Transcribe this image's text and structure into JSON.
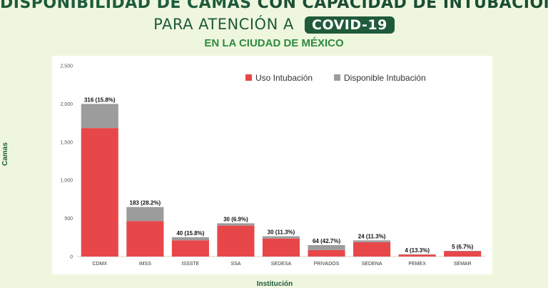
{
  "header": {
    "line1_a": "DISPONIBILIDAD DE CAMAS",
    "line1_b": "CON CAPACIDAD DE INTUBACIÓN",
    "line2_a": "PARA ATENCIÓN A",
    "line2_badge": "COVID-19",
    "line3": "EN LA CIUDAD DE MÉXICO"
  },
  "colors": {
    "uso": "#e8474a",
    "disponible": "#9c9c9c",
    "title": "#1f5a3b",
    "subtitle": "#2e8a3f"
  },
  "chart_data": {
    "type": "bar",
    "stacked": true,
    "title": "",
    "xlabel": "Institución",
    "ylabel": "Camas",
    "ylim": [
      0,
      2500
    ],
    "yticks": [
      0,
      500,
      1000,
      1500,
      2000,
      2500
    ],
    "ytick_labels": [
      "0",
      "500",
      "1,000",
      "1,500",
      "2,000",
      "2,500"
    ],
    "categories": [
      "CDMX",
      "IMSS",
      "ISSSTE",
      "SSA",
      "SEDESA",
      "PRIVADOS",
      "SEDENA",
      "PEMEX",
      "SEMAR"
    ],
    "series": [
      {
        "name": "Uso Intubación",
        "values": [
          1684,
          466,
          213,
          406,
          236,
          86,
          188,
          26,
          70
        ]
      },
      {
        "name": "Disponible Intubación",
        "values": [
          316,
          183,
          40,
          30,
          30,
          64,
          24,
          4,
          5
        ]
      }
    ],
    "data_labels": [
      "316 (15.8%)",
      "183 (28.2%)",
      "40 (15.8%)",
      "30 (6.9%)",
      "30 (11.3%)",
      "64 (42.7%)",
      "24 (11.3%)",
      "4 (13.3%)",
      "5 (6.7%)"
    ],
    "legend_position": "top-right"
  }
}
